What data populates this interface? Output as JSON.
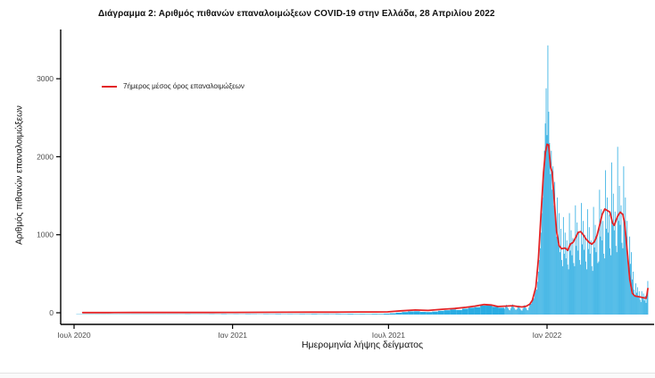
{
  "page": {
    "background": "#ffffff",
    "divider_color": "#e4e4e4"
  },
  "title": "Διάγραμμα 2: Αριθμός πιθανών επαναλοιμώξεων COVID-19 στην Ελλάδα, 28 Απριλίου 2022",
  "chart_data": {
    "type": "bar",
    "subtype": "daily histogram with 7-day moving average line",
    "title": "Διάγραμμα 2: Αριθμός πιθανών επαναλοιμώξεων COVID-19 στην Ελλάδα, 28 Απριλίου 2022",
    "xlabel": "Ημερομηνία λήψης δείγματος",
    "ylabel": "Αριθμός πιθανών επαναλοιμώξεων",
    "legend_position": "upper-left inside plot",
    "legend": [
      {
        "label": "7ήμερος μέσος όρος επαναλοιμώξεων",
        "type": "line",
        "color": "#e32427"
      }
    ],
    "bar_color": "#2aace2",
    "line_color": "#e32427",
    "axis_color": "#000000",
    "tick_label_color": "#4d4d4d",
    "grid": false,
    "x_start_date": "2020-07-01",
    "x_end_date": "2022-04-28",
    "x_ticks": [
      {
        "day": 0,
        "label": "Ιουλ 2020"
      },
      {
        "day": 184,
        "label": "Ιαν 2021"
      },
      {
        "day": 365,
        "label": "Ιουλ 2021"
      },
      {
        "day": 549,
        "label": "Ιαν 2022"
      }
    ],
    "y_ticks": [
      0,
      1000,
      2000,
      3000
    ],
    "ylim": [
      0,
      3550
    ],
    "comment_units": "day = days since 2020-07-01, value = probable reinfections per day (estimated from pixels)",
    "bars_sparse_weekly": [
      [
        6,
        1
      ],
      [
        13,
        2
      ],
      [
        20,
        1
      ],
      [
        27,
        2
      ],
      [
        34,
        1
      ],
      [
        41,
        3
      ],
      [
        48,
        1
      ],
      [
        55,
        2
      ],
      [
        62,
        1
      ],
      [
        69,
        2
      ],
      [
        76,
        3
      ],
      [
        83,
        1
      ],
      [
        90,
        2
      ],
      [
        97,
        3
      ],
      [
        104,
        2
      ],
      [
        111,
        4
      ],
      [
        118,
        2
      ],
      [
        125,
        3
      ],
      [
        132,
        5
      ],
      [
        139,
        3
      ],
      [
        146,
        4
      ],
      [
        153,
        3
      ],
      [
        160,
        5
      ],
      [
        167,
        4
      ],
      [
        174,
        6
      ],
      [
        181,
        4
      ],
      [
        188,
        5
      ],
      [
        195,
        4
      ],
      [
        202,
        6
      ],
      [
        209,
        5
      ],
      [
        216,
        4
      ],
      [
        223,
        6
      ],
      [
        230,
        5
      ],
      [
        237,
        7
      ],
      [
        244,
        5
      ],
      [
        251,
        6
      ],
      [
        258,
        5
      ],
      [
        265,
        7
      ],
      [
        272,
        6
      ],
      [
        279,
        8
      ],
      [
        286,
        6
      ],
      [
        293,
        7
      ],
      [
        300,
        6
      ],
      [
        307,
        8
      ],
      [
        314,
        7
      ],
      [
        321,
        9
      ],
      [
        328,
        7
      ],
      [
        335,
        8
      ],
      [
        342,
        7
      ],
      [
        349,
        9
      ],
      [
        356,
        8
      ],
      [
        363,
        12
      ],
      [
        370,
        16
      ],
      [
        377,
        24
      ],
      [
        384,
        32
      ],
      [
        391,
        40
      ],
      [
        398,
        42
      ],
      [
        405,
        34
      ],
      [
        412,
        32
      ],
      [
        419,
        38
      ],
      [
        426,
        48
      ],
      [
        433,
        55
      ],
      [
        440,
        65
      ],
      [
        447,
        58
      ],
      [
        454,
        75
      ],
      [
        461,
        88
      ],
      [
        468,
        95
      ],
      [
        475,
        115
      ],
      [
        482,
        125
      ],
      [
        489,
        100
      ],
      [
        496,
        88
      ]
    ],
    "bars_daily_from_day": 500,
    "bars_daily": [
      75,
      100,
      125,
      95,
      80,
      60,
      55,
      80,
      110,
      130,
      100,
      85,
      65,
      60,
      70,
      95,
      115,
      90,
      75,
      55,
      50,
      75,
      100,
      120,
      95,
      80,
      60,
      55,
      90,
      130,
      160,
      140,
      170,
      230,
      210,
      280,
      340,
      320,
      420,
      550,
      700,
      850,
      1050,
      1300,
      1500,
      1750,
      2100,
      2450,
      2900,
      2300,
      3450,
      2600,
      2200,
      1800,
      2100,
      1600,
      1900,
      1400,
      1700,
      1250,
      1000,
      1500,
      900,
      1300,
      800,
      1100,
      700,
      620,
      1250,
      780,
      1050,
      720,
      950,
      640,
      580,
      1300,
      820,
      1080,
      760,
      980,
      660,
      620,
      1400,
      880,
      1180,
      820,
      1050,
      700,
      640,
      1430,
      900,
      1200,
      830,
      1020,
      680,
      580,
      1350,
      840,
      1120,
      780,
      950,
      620,
      560,
      1380,
      860,
      1150,
      800,
      1000,
      660,
      680,
      1600,
      1000,
      1350,
      950,
      1200,
      780,
      720,
      1850,
      1100,
      1500,
      1050,
      1280,
      850,
      760,
      1950,
      1150,
      1550,
      1080,
      1320,
      880,
      800,
      2150,
      1200,
      1650,
      1150,
      1400,
      920,
      850,
      1900,
      1180,
      1500,
      1000,
      1200,
      750,
      550,
      1000,
      650,
      800,
      450,
      550,
      320,
      250,
      400,
      280,
      350,
      220,
      300,
      190,
      160,
      300,
      220,
      270,
      180,
      240,
      150,
      280,
      430
    ],
    "avg_line_points": [
      [
        10,
        2
      ],
      [
        40,
        2
      ],
      [
        70,
        3
      ],
      [
        100,
        3
      ],
      [
        130,
        4
      ],
      [
        160,
        4
      ],
      [
        185,
        5
      ],
      [
        215,
        6
      ],
      [
        245,
        7
      ],
      [
        275,
        8
      ],
      [
        305,
        8
      ],
      [
        330,
        10
      ],
      [
        350,
        10
      ],
      [
        364,
        12
      ],
      [
        372,
        18
      ],
      [
        380,
        25
      ],
      [
        396,
        35
      ],
      [
        411,
        30
      ],
      [
        427,
        45
      ],
      [
        442,
        55
      ],
      [
        455,
        70
      ],
      [
        465,
        85
      ],
      [
        476,
        105
      ],
      [
        484,
        100
      ],
      [
        492,
        80
      ],
      [
        500,
        85
      ],
      [
        509,
        90
      ],
      [
        515,
        80
      ],
      [
        520,
        75
      ],
      [
        525,
        85
      ],
      [
        529,
        110
      ],
      [
        532,
        160
      ],
      [
        536,
        330
      ],
      [
        539,
        700
      ],
      [
        542,
        1250
      ],
      [
        545,
        1800
      ],
      [
        547,
        2050
      ],
      [
        549,
        2160
      ],
      [
        551,
        2150
      ],
      [
        553,
        1870
      ],
      [
        555,
        1800
      ],
      [
        557,
        1500
      ],
      [
        560,
        1050
      ],
      [
        563,
        860
      ],
      [
        566,
        820
      ],
      [
        570,
        830
      ],
      [
        573,
        800
      ],
      [
        576,
        880
      ],
      [
        579,
        900
      ],
      [
        582,
        960
      ],
      [
        585,
        1030
      ],
      [
        588,
        1040
      ],
      [
        591,
        1000
      ],
      [
        594,
        950
      ],
      [
        598,
        900
      ],
      [
        601,
        880
      ],
      [
        604,
        910
      ],
      [
        607,
        990
      ],
      [
        610,
        1120
      ],
      [
        613,
        1260
      ],
      [
        616,
        1330
      ],
      [
        619,
        1310
      ],
      [
        622,
        1290
      ],
      [
        625,
        1150
      ],
      [
        627,
        1120
      ],
      [
        631,
        1240
      ],
      [
        634,
        1290
      ],
      [
        637,
        1260
      ],
      [
        639,
        1150
      ],
      [
        642,
        800
      ],
      [
        645,
        430
      ],
      [
        648,
        250
      ],
      [
        651,
        215
      ],
      [
        656,
        205
      ],
      [
        660,
        195
      ],
      [
        664,
        185
      ],
      [
        665,
        230
      ],
      [
        666,
        310
      ]
    ]
  }
}
